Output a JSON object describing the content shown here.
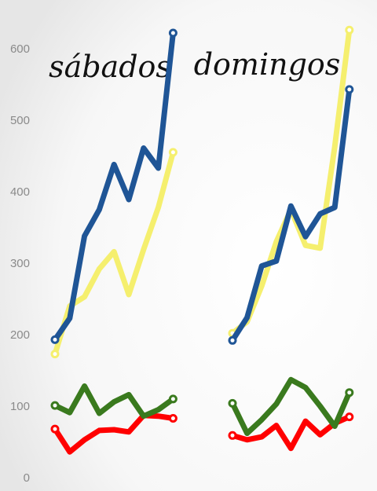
{
  "chart_data": {
    "type": "line",
    "ylim": [
      0,
      625
    ],
    "yticks": [
      0,
      100,
      200,
      300,
      400,
      500,
      600
    ],
    "grid": false,
    "legend": "none",
    "panels": [
      {
        "title": "sábados",
        "series": [
          {
            "color": "#1f5596",
            "values": [
              193,
              223,
              338,
              375,
              438,
              389,
              461,
              433,
              622
            ]
          },
          {
            "color": "#f5ef6e",
            "values": [
              173,
              240,
              253,
              292,
              316,
              256,
              319,
              378,
              455
            ]
          },
          {
            "color": "#3a7a1e",
            "values": [
              101,
              91,
              128,
              90,
              106,
              116,
              86,
              95,
              110
            ]
          },
          {
            "color": "#ff0000",
            "values": [
              68,
              36,
              53,
              66,
              67,
              64,
              87,
              86,
              83
            ]
          }
        ]
      },
      {
        "title": "domingos",
        "series": [
          {
            "color": "#1f5596",
            "values": [
              192,
              224,
              296,
              303,
              380,
              337,
              369,
              378,
              543
            ]
          },
          {
            "color": "#f5ef6e",
            "values": [
              202,
              218,
              268,
              330,
              375,
              325,
              321,
              463,
              626
            ]
          },
          {
            "color": "#3a7a1e",
            "values": [
              104,
              62,
              81,
              103,
              137,
              126,
              100,
              72,
              119
            ]
          },
          {
            "color": "#ff0000",
            "values": [
              59,
              53,
              57,
              73,
              41,
              79,
              60,
              76,
              85
            ]
          }
        ]
      }
    ]
  }
}
